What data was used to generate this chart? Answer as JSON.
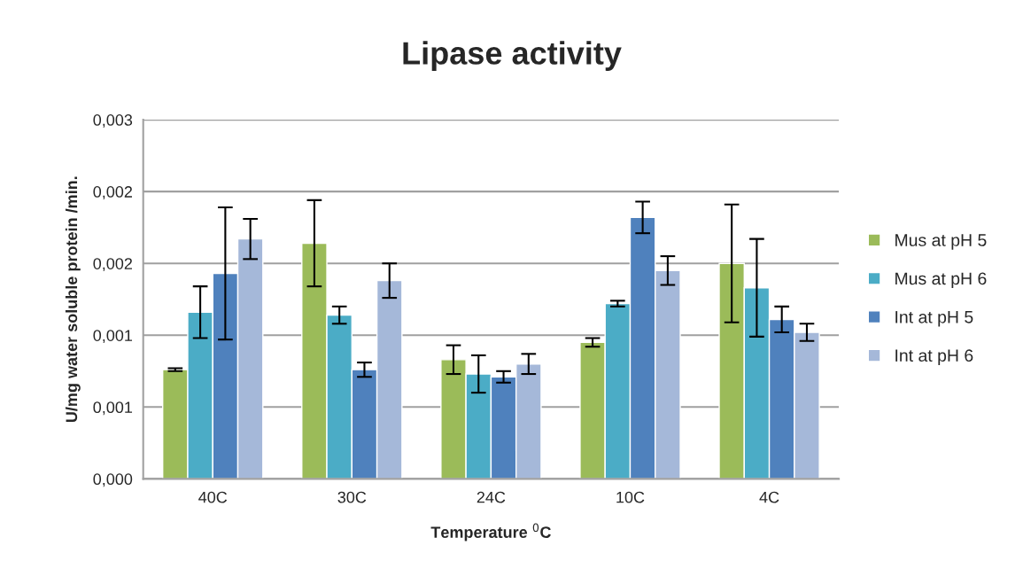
{
  "chart_data": {
    "type": "bar",
    "title": "Lipase activity",
    "xlabel": "Temperature $^{0}$C",
    "ylabel": "U/mg water soluble protein /min.",
    "categories": [
      "40C",
      "30C",
      "24C",
      "10C",
      "4C"
    ],
    "series": [
      {
        "name": "Mus at pH 5",
        "color": "#9bbb59",
        "values": [
          0.00076,
          0.00164,
          0.00083,
          0.00095,
          0.0015
        ],
        "errors": [
          1e-05,
          0.0003,
          0.0001,
          3e-05,
          0.00041
        ]
      },
      {
        "name": "Mus at pH 6",
        "color": "#4bacc6",
        "values": [
          0.00116,
          0.00114,
          0.00073,
          0.00122,
          0.00133
        ],
        "errors": [
          0.00018,
          6e-05,
          0.00013,
          2e-05,
          0.00034
        ]
      },
      {
        "name": "Int at pH 5",
        "color": "#4f81bd",
        "values": [
          0.00143,
          0.00076,
          0.00071,
          0.00182,
          0.00111
        ],
        "errors": [
          0.00046,
          5e-05,
          4e-05,
          0.00011,
          9e-05
        ]
      },
      {
        "name": "Int at pH 6",
        "color": "#a5b8d9",
        "values": [
          0.00167,
          0.00138,
          0.0008,
          0.00145,
          0.00102
        ],
        "errors": [
          0.00014,
          0.00012,
          7e-05,
          0.0001,
          6e-05
        ]
      }
    ],
    "ylim": [
      0,
      0.0025
    ],
    "yticks": [
      {
        "value": 0,
        "label": "0,000"
      },
      {
        "value": 0.0005,
        "label": "0,001"
      },
      {
        "value": 0.001,
        "label": "0,001"
      },
      {
        "value": 0.0015,
        "label": "0,002"
      },
      {
        "value": 0.002,
        "label": "0,002"
      },
      {
        "value": 0.0025,
        "label": "0,003"
      }
    ],
    "grid": "y",
    "legend": "right"
  }
}
